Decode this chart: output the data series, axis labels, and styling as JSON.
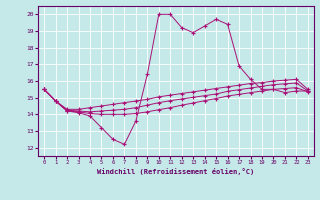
{
  "xlabel": "Windchill (Refroidissement éolien,°C)",
  "background_color": "#c5e8e8",
  "grid_color": "#b0d8d8",
  "line_color": "#aa1177",
  "x_ticks": [
    0,
    1,
    2,
    3,
    4,
    5,
    6,
    7,
    8,
    9,
    10,
    11,
    12,
    13,
    14,
    15,
    16,
    17,
    18,
    19,
    20,
    21,
    22,
    23
  ],
  "y_ticks": [
    12,
    13,
    14,
    15,
    16,
    17,
    18,
    19,
    20
  ],
  "ylim": [
    11.5,
    20.5
  ],
  "xlim": [
    -0.5,
    23.5
  ],
  "line1_y": [
    15.5,
    14.8,
    14.2,
    14.1,
    13.9,
    13.2,
    12.5,
    12.2,
    13.6,
    16.4,
    20.0,
    20.0,
    19.2,
    18.9,
    19.3,
    19.7,
    19.4,
    16.9,
    16.1,
    15.5,
    15.5,
    15.3,
    15.4,
    15.4
  ],
  "line2_y": [
    15.5,
    14.8,
    14.3,
    14.3,
    14.4,
    14.5,
    14.6,
    14.7,
    14.8,
    14.9,
    15.05,
    15.15,
    15.25,
    15.35,
    15.45,
    15.55,
    15.65,
    15.75,
    15.85,
    15.9,
    16.0,
    16.05,
    16.1,
    15.5
  ],
  "line3_y": [
    15.5,
    14.8,
    14.25,
    14.2,
    14.15,
    14.2,
    14.25,
    14.3,
    14.4,
    14.55,
    14.7,
    14.82,
    14.92,
    15.02,
    15.12,
    15.22,
    15.38,
    15.48,
    15.58,
    15.68,
    15.78,
    15.83,
    15.88,
    15.4
  ],
  "line4_y": [
    15.5,
    14.8,
    14.2,
    14.15,
    14.05,
    14.0,
    14.0,
    14.0,
    14.05,
    14.15,
    14.28,
    14.4,
    14.55,
    14.68,
    14.82,
    14.95,
    15.1,
    15.2,
    15.3,
    15.4,
    15.5,
    15.55,
    15.6,
    15.35
  ]
}
